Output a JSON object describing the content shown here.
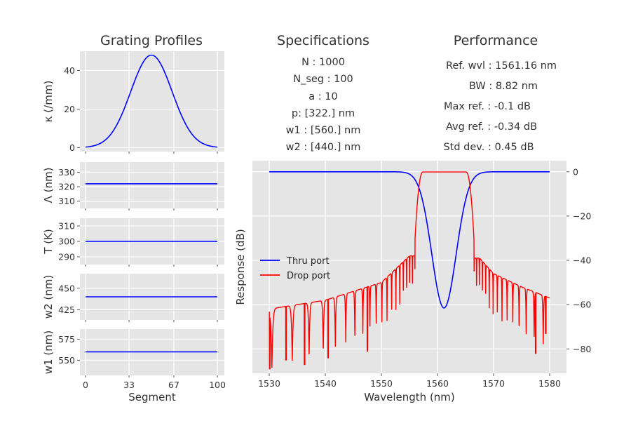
{
  "titles": {
    "profiles": "Grating Profiles",
    "specs": "Specifications",
    "performance": "Performance"
  },
  "specs": [
    "N : 1000",
    "N_seg : 100",
    "a : 10",
    "p: [322.] nm",
    "w1 : [560.] nm",
    "w2 : [440.] nm"
  ],
  "performance": [
    "Ref. wvl : 1561.16 nm",
    "BW : 8.82 nm",
    "Max ref. : -0.1 dB",
    "Avg ref. : -0.34 dB",
    "Std dev. : 0.45 dB"
  ],
  "colors": {
    "thru": "#0000FF",
    "drop": "#FF0000",
    "panel_bg": "#E5E5E5"
  },
  "chart_data": [
    {
      "type": "line",
      "id": "kappa",
      "ylabel": "κ (/mm)",
      "x_range": [
        0,
        100
      ],
      "ylim": [
        -2,
        50
      ],
      "yticks": [
        0,
        20,
        40
      ],
      "ytick_labels": [
        "0",
        "20",
        "40"
      ],
      "shape": "gaussian",
      "peak": 48,
      "peak_at": 50,
      "edge_value": 0.3
    },
    {
      "type": "line",
      "id": "lambda",
      "ylabel": "Λ (nm)",
      "x_range": [
        0,
        100
      ],
      "ylim": [
        305,
        337
      ],
      "yticks": [
        310,
        320,
        330
      ],
      "ytick_labels": [
        "310",
        "320",
        "330"
      ],
      "value": 322
    },
    {
      "type": "line",
      "id": "temperature",
      "ylabel": "T (K)",
      "x_range": [
        0,
        100
      ],
      "ylim": [
        285,
        315
      ],
      "yticks": [
        290,
        300,
        310
      ],
      "ytick_labels": [
        "290",
        "300",
        "310"
      ],
      "value": 300
    },
    {
      "type": "line",
      "id": "w2",
      "ylabel": "w2 (nm)",
      "x_range": [
        0,
        100
      ],
      "ylim": [
        413,
        467
      ],
      "yticks": [
        425,
        450
      ],
      "ytick_labels": [
        "425",
        "450"
      ],
      "value": 440
    },
    {
      "type": "line",
      "id": "w1",
      "ylabel": "w1 (nm)",
      "xlabel": "Segment",
      "x_range": [
        0,
        100
      ],
      "ylim": [
        532,
        587
      ],
      "yticks": [
        550,
        575
      ],
      "ytick_labels": [
        "550",
        "575"
      ],
      "xticks": [
        0,
        33,
        67,
        100
      ],
      "xtick_labels": [
        "0",
        "33",
        "67",
        "100"
      ],
      "value": 560
    },
    {
      "type": "line",
      "id": "response",
      "xlabel": "Wavelength (nm)",
      "ylabel": "Response (dB)",
      "xlim": [
        1527,
        1583
      ],
      "ylim": [
        -91,
        5
      ],
      "xticks": [
        1530,
        1540,
        1550,
        1560,
        1570,
        1580
      ],
      "xtick_labels": [
        "1530",
        "1540",
        "1550",
        "1560",
        "1570",
        "1580"
      ],
      "yticks": [
        0,
        -20,
        -40,
        -60,
        -80
      ],
      "ytick_labels": [
        "0",
        "−20",
        "−40",
        "−60",
        "−80"
      ],
      "legend_position": "center-left",
      "series": [
        {
          "name": "Thru port",
          "color": "#0000FF",
          "baseline": 0,
          "notch_center": 1561.16,
          "notch_min": -61.5,
          "notch_band": [
            1556.6,
            1565.7
          ]
        },
        {
          "name": "Drop port",
          "color": "#FF0000",
          "passband": [
            1556.0,
            1566.5
          ],
          "passband_level": -0.1,
          "left_envelope": [
            [
              1530,
              -62
            ],
            [
              1540,
              -58
            ],
            [
              1550,
              -50
            ],
            [
              1555,
              -38
            ]
          ],
          "right_envelope": [
            [
              1567.5,
              -39
            ],
            [
              1570,
              -46
            ],
            [
              1575,
              -52
            ],
            [
              1580,
              -57
            ]
          ],
          "deep_nulls": [
            {
              "x": 1530.1,
              "y": -89
            },
            {
              "x": 1533.0,
              "y": -85
            },
            {
              "x": 1536.3,
              "y": -87
            },
            {
              "x": 1540.5,
              "y": -84
            },
            {
              "x": 1547.5,
              "y": -81
            },
            {
              "x": 1577.5,
              "y": -82
            },
            {
              "x": 1579.3,
              "y": -73
            }
          ]
        }
      ]
    }
  ]
}
